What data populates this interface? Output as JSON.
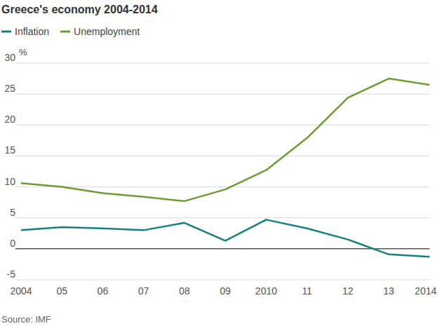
{
  "chart_data": {
    "type": "line",
    "title": "Greece's economy 2004-2014",
    "y_label": "%",
    "source": "Source: IMF",
    "categories": [
      "2004",
      "05",
      "06",
      "07",
      "08",
      "09",
      "2010",
      "11",
      "12",
      "13",
      "2014"
    ],
    "series": [
      {
        "name": "Inflation",
        "color": "#16807e",
        "values": [
          3.0,
          3.5,
          3.3,
          3.0,
          4.2,
          1.3,
          4.7,
          3.3,
          1.5,
          -0.9,
          -1.3
        ]
      },
      {
        "name": "Unemployment",
        "color": "#6f9c30",
        "values": [
          10.6,
          10.0,
          9.0,
          8.4,
          7.7,
          9.6,
          12.7,
          17.9,
          24.4,
          27.5,
          26.5
        ]
      }
    ],
    "ylim": [
      -5,
      30
    ],
    "yticks": [
      -5,
      0,
      5,
      10,
      15,
      20,
      25,
      30
    ],
    "grid": true,
    "legend": "top-left"
  }
}
